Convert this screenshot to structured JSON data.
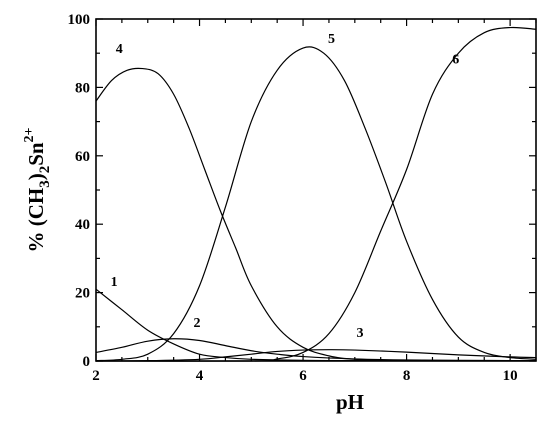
{
  "chart_data": {
    "type": "line",
    "xlabel": "pH",
    "ylabel": {
      "pre": "% (CH",
      "sub1": "3",
      "mid1": ")",
      "sub2": "2",
      "mid2": "Sn",
      "sup": "2+"
    },
    "xlim": [
      2,
      10.5
    ],
    "ylim": [
      0,
      100
    ],
    "xticks": [
      2,
      4,
      6,
      8,
      10
    ],
    "yticks": [
      0,
      20,
      40,
      60,
      80,
      100
    ],
    "grid": false,
    "series": [
      {
        "name": "1",
        "points": [
          [
            2.0,
            21
          ],
          [
            2.5,
            15
          ],
          [
            3.0,
            9
          ],
          [
            3.5,
            5
          ],
          [
            4.0,
            2
          ],
          [
            4.5,
            1
          ],
          [
            5.0,
            0.5
          ],
          [
            6.0,
            0.2
          ],
          [
            7.0,
            0.1
          ],
          [
            8.0,
            0.1
          ],
          [
            9.0,
            0.1
          ],
          [
            10.5,
            0.1
          ]
        ]
      },
      {
        "name": "2",
        "points": [
          [
            2.0,
            2.5
          ],
          [
            2.5,
            4.0
          ],
          [
            3.0,
            5.8
          ],
          [
            3.5,
            6.5
          ],
          [
            4.0,
            6.0
          ],
          [
            4.5,
            4.5
          ],
          [
            5.0,
            3.0
          ],
          [
            5.5,
            2.0
          ],
          [
            6.0,
            1.3
          ],
          [
            7.0,
            0.6
          ],
          [
            8.0,
            0.3
          ],
          [
            9.0,
            0.2
          ],
          [
            10.5,
            0.1
          ]
        ]
      },
      {
        "name": "3",
        "points": [
          [
            2.0,
            0.0
          ],
          [
            3.0,
            0.1
          ],
          [
            4.0,
            0.5
          ],
          [
            4.5,
            1.2
          ],
          [
            5.0,
            2.0
          ],
          [
            5.5,
            2.8
          ],
          [
            6.0,
            3.2
          ],
          [
            6.5,
            3.3
          ],
          [
            7.0,
            3.2
          ],
          [
            8.0,
            2.6
          ],
          [
            9.0,
            1.8
          ],
          [
            10.0,
            1.2
          ],
          [
            10.5,
            1.0
          ]
        ]
      },
      {
        "name": "4",
        "points": [
          [
            2.0,
            76
          ],
          [
            2.3,
            82
          ],
          [
            2.6,
            85
          ],
          [
            2.9,
            85.5
          ],
          [
            3.2,
            84
          ],
          [
            3.5,
            78
          ],
          [
            3.8,
            68
          ],
          [
            4.1,
            56
          ],
          [
            4.4,
            44
          ],
          [
            4.7,
            33
          ],
          [
            5.0,
            22
          ],
          [
            5.5,
            10
          ],
          [
            6.0,
            4
          ],
          [
            6.5,
            1.5
          ],
          [
            7.0,
            0.5
          ],
          [
            8.0,
            0.1
          ],
          [
            10.5,
            0.1
          ]
        ]
      },
      {
        "name": "5",
        "points": [
          [
            2.0,
            0.1
          ],
          [
            2.5,
            0.5
          ],
          [
            3.0,
            2
          ],
          [
            3.5,
            8
          ],
          [
            4.0,
            22
          ],
          [
            4.5,
            45
          ],
          [
            5.0,
            70
          ],
          [
            5.5,
            85
          ],
          [
            6.0,
            91.5
          ],
          [
            6.4,
            90
          ],
          [
            6.8,
            82
          ],
          [
            7.2,
            68
          ],
          [
            7.6,
            52
          ],
          [
            8.0,
            35
          ],
          [
            8.5,
            18
          ],
          [
            9.0,
            7
          ],
          [
            9.5,
            2.5
          ],
          [
            10.0,
            1
          ],
          [
            10.5,
            0.5
          ]
        ]
      },
      {
        "name": "6",
        "points": [
          [
            2.0,
            0.0
          ],
          [
            5.0,
            0.0
          ],
          [
            5.5,
            0.6
          ],
          [
            6.0,
            2.5
          ],
          [
            6.5,
            8
          ],
          [
            7.0,
            20
          ],
          [
            7.5,
            38
          ],
          [
            8.0,
            56
          ],
          [
            8.5,
            78
          ],
          [
            9.0,
            90
          ],
          [
            9.5,
            96
          ],
          [
            10.0,
            97.5
          ],
          [
            10.5,
            97
          ]
        ]
      }
    ],
    "curve_labels": [
      {
        "text": "1",
        "x": 2.35,
        "y": 22
      },
      {
        "text": "2",
        "x": 3.95,
        "y": 10
      },
      {
        "text": "3",
        "x": 7.1,
        "y": 7
      },
      {
        "text": "4",
        "x": 2.45,
        "y": 90
      },
      {
        "text": "5",
        "x": 6.55,
        "y": 93
      },
      {
        "text": "6",
        "x": 8.95,
        "y": 87
      }
    ]
  }
}
